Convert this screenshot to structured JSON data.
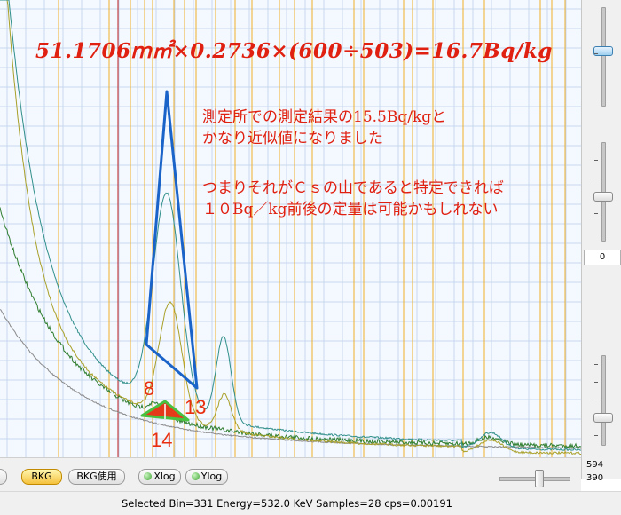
{
  "annotations": {
    "formula": "51.1706ｍ㎡×0.2736×(600÷503)=16.7Bq/kg",
    "note1_line1": "測定所での測定結果の15.5Bq/kgと",
    "note1_line2": "かなり近似値になりました",
    "note2_line1": "つまりそれがＣｓの山であると特定できれば",
    "note2_line2": "１０Bq／kg前後の定量は可能かもしれない",
    "label_8": "8",
    "label_13": "13",
    "label_14": "14"
  },
  "toolbar": {
    "partial_button": "...",
    "bkg_label": "BKG",
    "bkg_use_label": "BKG使用",
    "xlog_label": "Xlog",
    "ylog_label": "Ylog"
  },
  "right_panel": {
    "mid_value": "0",
    "bottom_value_1": "594",
    "bottom_value_2": "390"
  },
  "status": {
    "text": "Selected Bin=331  Energy=532.0 KeV  Samples=28  cps=0.00191"
  },
  "colors": {
    "plot_background": "#f4f8ff",
    "grid_line": "#c8d8ee",
    "marker_line": "#f0b02a",
    "selected_line": "#c02020",
    "series_teal": "#2f8f8a",
    "series_olive": "#a8a028",
    "series_green": "#2e7d2e",
    "series_gray": "#8a8a8a",
    "annotation_red": "#e02010",
    "overlay_blue": "#1a63c8"
  }
}
